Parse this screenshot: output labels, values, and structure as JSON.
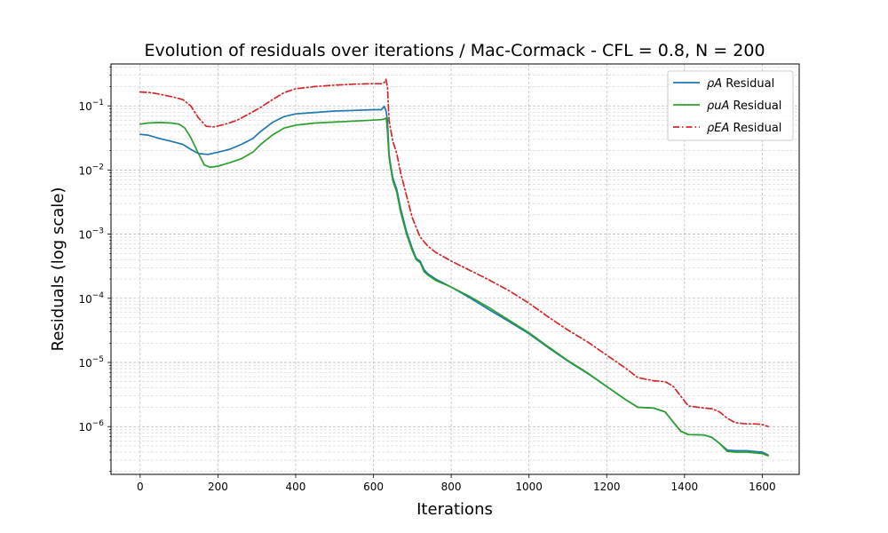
{
  "chart_data": {
    "type": "line",
    "title": "Evolution of residuals over iterations / Mac-Cormack - CFL = 0.8, N = 200",
    "xlabel": "Iterations",
    "ylabel": "Residuals (log scale)",
    "xlim": [
      -75,
      1695
    ],
    "ylim": [
      1.8e-07,
      0.45
    ],
    "yscale": "log",
    "grid": true,
    "legend_position": "top-right",
    "xticks": [
      0,
      200,
      400,
      600,
      800,
      1000,
      1200,
      1400,
      1600
    ],
    "xtick_labels": [
      "0",
      "200",
      "400",
      "600",
      "800",
      "1000",
      "1200",
      "1400",
      "1600"
    ],
    "yticks": [
      1e-06,
      1e-05,
      0.0001,
      0.001,
      0.01,
      0.1
    ],
    "ytick_labels": [
      {
        "base": "10",
        "exp": "−6"
      },
      {
        "base": "10",
        "exp": "−5"
      },
      {
        "base": "10",
        "exp": "−4"
      },
      {
        "base": "10",
        "exp": "−3"
      },
      {
        "base": "10",
        "exp": "−2"
      },
      {
        "base": "10",
        "exp": "−1"
      }
    ],
    "series": [
      {
        "name_parts": {
          "math": "ρA",
          "text": " Residual"
        },
        "color": "#1f77b4",
        "style": "solid",
        "x": [
          0,
          20,
          50,
          80,
          110,
          130,
          150,
          175,
          200,
          230,
          260,
          290,
          310,
          340,
          370,
          400,
          450,
          500,
          550,
          600,
          620,
          628,
          632,
          636,
          640,
          645,
          650,
          660,
          670,
          685,
          700,
          710,
          720,
          730,
          740,
          760,
          800,
          850,
          900,
          950,
          1000,
          1050,
          1100,
          1150,
          1200,
          1250,
          1280,
          1320,
          1350,
          1370,
          1390,
          1410,
          1450,
          1470,
          1490,
          1510,
          1530,
          1560,
          1580,
          1600,
          1615
        ],
        "y": [
          0.036,
          0.035,
          0.031,
          0.028,
          0.025,
          0.021,
          0.018,
          0.0175,
          0.019,
          0.021,
          0.025,
          0.031,
          0.04,
          0.055,
          0.068,
          0.075,
          0.079,
          0.083,
          0.085,
          0.087,
          0.087,
          0.098,
          0.085,
          0.06,
          0.018,
          0.011,
          0.0075,
          0.005,
          0.0025,
          0.0011,
          0.0006,
          0.00042,
          0.00038,
          0.00028,
          0.00024,
          0.0002,
          0.00015,
          0.0001,
          6.5e-05,
          4.3e-05,
          2.8e-05,
          1.7e-05,
          1.05e-05,
          6.8e-06,
          4.2e-06,
          2.6e-06,
          2e-06,
          1.95e-06,
          1.7e-06,
          1.2e-06,
          8.5e-07,
          7.5e-07,
          7.4e-07,
          6.8e-07,
          5.5e-07,
          4.3e-07,
          4.2e-07,
          4.2e-07,
          4.1e-07,
          4e-07,
          3.6e-07
        ]
      },
      {
        "name_parts": {
          "math": "ρuA",
          "text": " Residual"
        },
        "color": "#2ca02c",
        "style": "solid",
        "x": [
          0,
          20,
          50,
          80,
          100,
          115,
          130,
          150,
          165,
          180,
          200,
          230,
          260,
          290,
          310,
          340,
          370,
          400,
          450,
          500,
          550,
          600,
          620,
          630,
          633,
          636,
          640,
          645,
          650,
          660,
          670,
          685,
          700,
          710,
          720,
          730,
          740,
          760,
          800,
          850,
          900,
          950,
          1000,
          1050,
          1100,
          1150,
          1200,
          1250,
          1280,
          1320,
          1350,
          1370,
          1390,
          1410,
          1450,
          1470,
          1490,
          1510,
          1530,
          1560,
          1580,
          1600,
          1615
        ],
        "y": [
          0.052,
          0.054,
          0.055,
          0.054,
          0.052,
          0.045,
          0.032,
          0.018,
          0.012,
          0.011,
          0.0115,
          0.013,
          0.015,
          0.019,
          0.025,
          0.035,
          0.045,
          0.05,
          0.054,
          0.056,
          0.058,
          0.06,
          0.061,
          0.063,
          0.065,
          0.04,
          0.016,
          0.01,
          0.0068,
          0.0045,
          0.0022,
          0.001,
          0.00055,
          0.0004,
          0.00036,
          0.00026,
          0.00023,
          0.00019,
          0.00015,
          0.000105,
          7e-05,
          4.5e-05,
          2.9e-05,
          1.75e-05,
          1.07e-05,
          6.9e-06,
          4.2e-06,
          2.6e-06,
          2e-06,
          1.95e-06,
          1.7e-06,
          1.2e-06,
          8.5e-07,
          7.5e-07,
          7.4e-07,
          6.8e-07,
          5.5e-07,
          4.1e-07,
          4e-07,
          4e-07,
          3.9e-07,
          3.8e-07,
          3.5e-07
        ]
      },
      {
        "name_parts": {
          "math": "ρEA",
          "text": " Residual"
        },
        "color": "#d62728",
        "style": "dashdot",
        "x": [
          0,
          30,
          60,
          90,
          110,
          130,
          150,
          170,
          190,
          220,
          250,
          280,
          310,
          340,
          370,
          400,
          450,
          500,
          550,
          600,
          620,
          628,
          632,
          636,
          640,
          645,
          650,
          660,
          670,
          685,
          700,
          720,
          740,
          760,
          800,
          850,
          900,
          950,
          1000,
          1050,
          1100,
          1150,
          1200,
          1250,
          1280,
          1320,
          1350,
          1370,
          1390,
          1410,
          1450,
          1470,
          1490,
          1510,
          1530,
          1560,
          1580,
          1600,
          1615
        ],
        "y": [
          0.165,
          0.16,
          0.148,
          0.135,
          0.125,
          0.1,
          0.065,
          0.048,
          0.047,
          0.052,
          0.06,
          0.075,
          0.095,
          0.125,
          0.16,
          0.185,
          0.2,
          0.21,
          0.218,
          0.222,
          0.222,
          0.23,
          0.26,
          0.2,
          0.06,
          0.04,
          0.028,
          0.018,
          0.009,
          0.004,
          0.0018,
          0.0009,
          0.00065,
          0.00052,
          0.00038,
          0.00027,
          0.00019,
          0.00013,
          8.4e-05,
          5.1e-05,
          3.2e-05,
          2.1e-05,
          1.3e-05,
          8e-06,
          5.8e-06,
          5.2e-06,
          5e-06,
          4.3e-06,
          3e-06,
          2.1e-06,
          1.95e-06,
          1.9e-06,
          1.7e-06,
          1.35e-06,
          1.15e-06,
          1.1e-06,
          1.1e-06,
          1.08e-06,
          1e-06
        ]
      }
    ]
  }
}
